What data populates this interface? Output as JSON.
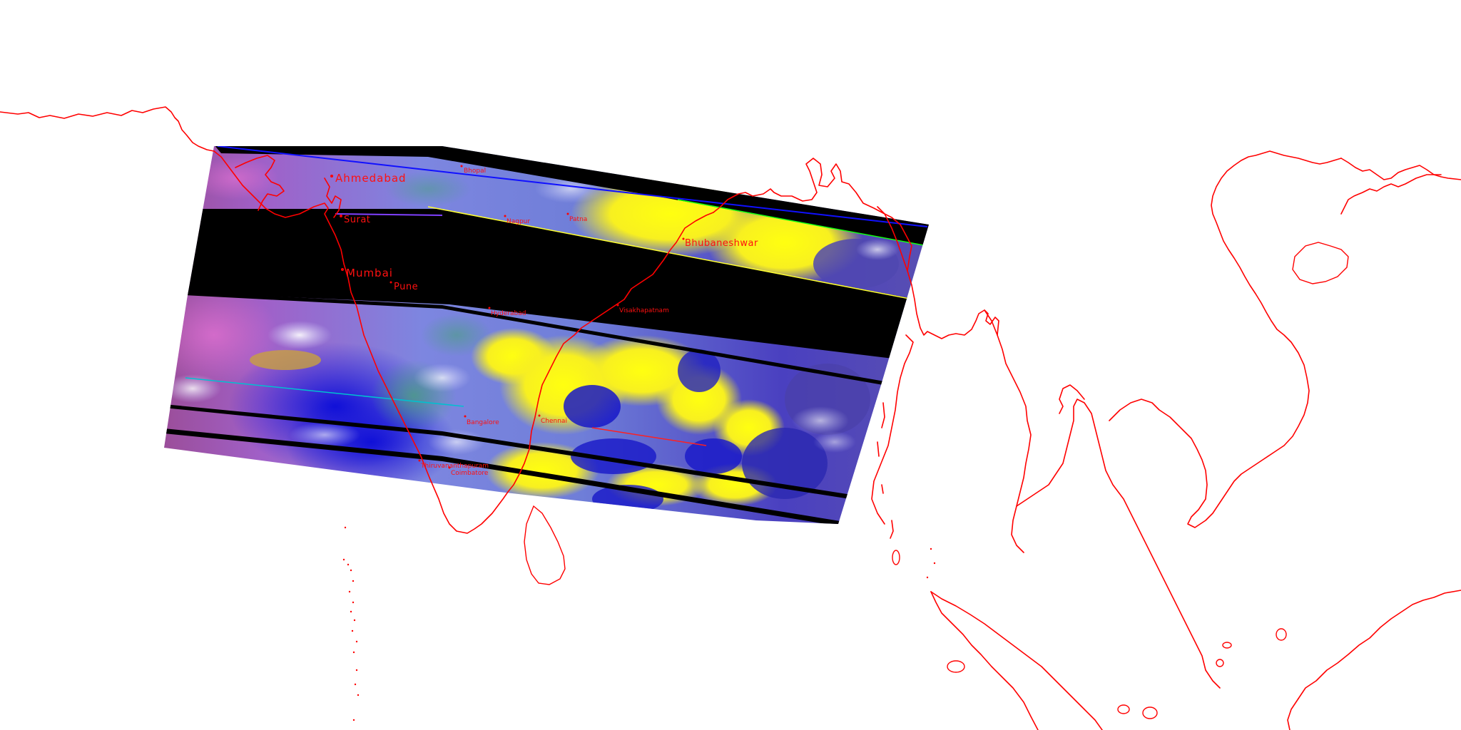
{
  "map": {
    "colors": {
      "background": "#ffffff",
      "coastline": "#ff0000",
      "no_data_band": "#000000",
      "cloud_high": "#ffff00",
      "ocean": "#1a10d0",
      "land": "#7a80e0"
    },
    "cities": [
      {
        "id": "ahmedabad",
        "label": "Ahmedabad",
        "size": "big"
      },
      {
        "id": "bhopal",
        "label": "Bhopal",
        "size": "small"
      },
      {
        "id": "surat",
        "label": "Surat",
        "size": "mid"
      },
      {
        "id": "nagpur",
        "label": "Nagpur",
        "size": "small"
      },
      {
        "id": "patna",
        "label": "Patna",
        "size": "small"
      },
      {
        "id": "bhubaneshwar",
        "label": "Bhubaneshwar",
        "size": "small"
      },
      {
        "id": "mumbai",
        "label": "Mumbai",
        "size": "big"
      },
      {
        "id": "pune",
        "label": "Pune",
        "size": "mid"
      },
      {
        "id": "hyderabad",
        "label": "Hyderabad",
        "size": "small"
      },
      {
        "id": "visakhapatnam",
        "label": "Visakhapatnam",
        "size": "small"
      },
      {
        "id": "bangalore",
        "label": "Bangalore",
        "size": "small"
      },
      {
        "id": "chennai",
        "label": "Chennai",
        "size": "small"
      },
      {
        "id": "thiruvananthapuram",
        "label": "Thiruvananthapuram",
        "size": "small"
      },
      {
        "id": "coimbatore",
        "label": "Coimbatore",
        "size": "small"
      }
    ]
  }
}
